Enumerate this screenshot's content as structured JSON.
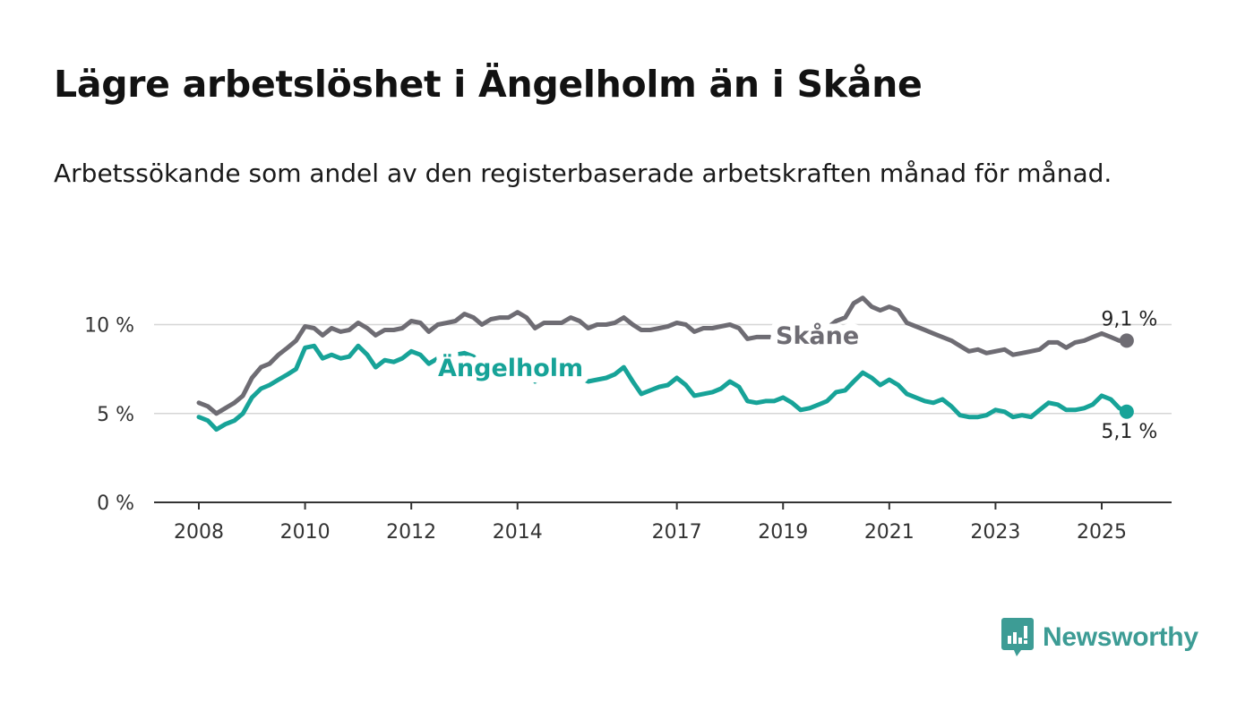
{
  "title": "Lägre arbetslöshet i Ängelholm än i Skåne",
  "subtitle": "Arbetssökande som andel av den registerbaserade arbetskraften månad för månad.",
  "brand": {
    "name": "Newsworthy",
    "color": "#3d9c95",
    "icon": "bar-chart-icon"
  },
  "chart_data": {
    "type": "line",
    "x_unit": "year",
    "xlim": [
      2007.75,
      2026.3
    ],
    "ylim": [
      0,
      12
    ],
    "grid": true,
    "x_ticks": [
      {
        "value": 2008,
        "label": "2008"
      },
      {
        "value": 2010,
        "label": "2010"
      },
      {
        "value": 2012,
        "label": "2012"
      },
      {
        "value": 2014,
        "label": "2014"
      },
      {
        "value": 2017,
        "label": "2017"
      },
      {
        "value": 2019,
        "label": "2019"
      },
      {
        "value": 2021,
        "label": "2021"
      },
      {
        "value": 2023,
        "label": "2023"
      },
      {
        "value": 2025,
        "label": "2025"
      }
    ],
    "y_ticks": [
      {
        "value": 0,
        "label": "0 %"
      },
      {
        "value": 5,
        "label": "5 %"
      },
      {
        "value": 10,
        "label": "10 %"
      }
    ],
    "series": [
      {
        "name": "Skåne",
        "color": "#6e6c73",
        "end_label": "9,1 %",
        "points": [
          [
            2008.0,
            5.6
          ],
          [
            2008.17,
            5.4
          ],
          [
            2008.33,
            5.0
          ],
          [
            2008.5,
            5.3
          ],
          [
            2008.67,
            5.6
          ],
          [
            2008.83,
            6.0
          ],
          [
            2009.0,
            7.0
          ],
          [
            2009.17,
            7.6
          ],
          [
            2009.33,
            7.8
          ],
          [
            2009.5,
            8.3
          ],
          [
            2009.67,
            8.7
          ],
          [
            2009.83,
            9.1
          ],
          [
            2010.0,
            9.9
          ],
          [
            2010.17,
            9.8
          ],
          [
            2010.33,
            9.4
          ],
          [
            2010.5,
            9.8
          ],
          [
            2010.67,
            9.6
          ],
          [
            2010.83,
            9.7
          ],
          [
            2011.0,
            10.1
          ],
          [
            2011.17,
            9.8
          ],
          [
            2011.33,
            9.4
          ],
          [
            2011.5,
            9.7
          ],
          [
            2011.67,
            9.7
          ],
          [
            2011.83,
            9.8
          ],
          [
            2012.0,
            10.2
          ],
          [
            2012.17,
            10.1
          ],
          [
            2012.33,
            9.6
          ],
          [
            2012.5,
            10.0
          ],
          [
            2012.67,
            10.1
          ],
          [
            2012.83,
            10.2
          ],
          [
            2013.0,
            10.6
          ],
          [
            2013.17,
            10.4
          ],
          [
            2013.33,
            10.0
          ],
          [
            2013.5,
            10.3
          ],
          [
            2013.67,
            10.4
          ],
          [
            2013.83,
            10.4
          ],
          [
            2014.0,
            10.7
          ],
          [
            2014.17,
            10.4
          ],
          [
            2014.33,
            9.8
          ],
          [
            2014.5,
            10.1
          ],
          [
            2014.67,
            10.1
          ],
          [
            2014.83,
            10.1
          ],
          [
            2015.0,
            10.4
          ],
          [
            2015.17,
            10.2
          ],
          [
            2015.33,
            9.8
          ],
          [
            2015.5,
            10.0
          ],
          [
            2015.67,
            10.0
          ],
          [
            2015.83,
            10.1
          ],
          [
            2016.0,
            10.4
          ],
          [
            2016.17,
            10.0
          ],
          [
            2016.33,
            9.7
          ],
          [
            2016.5,
            9.7
          ],
          [
            2016.67,
            9.8
          ],
          [
            2016.83,
            9.9
          ],
          [
            2017.0,
            10.1
          ],
          [
            2017.17,
            10.0
          ],
          [
            2017.33,
            9.6
          ],
          [
            2017.5,
            9.8
          ],
          [
            2017.67,
            9.8
          ],
          [
            2017.83,
            9.9
          ],
          [
            2018.0,
            10.0
          ],
          [
            2018.17,
            9.8
          ],
          [
            2018.33,
            9.2
          ],
          [
            2018.5,
            9.3
          ],
          [
            2018.67,
            9.3
          ],
          [
            2018.83,
            9.3
          ],
          [
            2019.0,
            9.6
          ],
          [
            2019.17,
            9.6
          ],
          [
            2019.33,
            9.4
          ],
          [
            2019.5,
            9.6
          ],
          [
            2019.67,
            9.6
          ],
          [
            2019.83,
            9.8
          ],
          [
            2020.0,
            10.2
          ],
          [
            2020.17,
            10.4
          ],
          [
            2020.33,
            11.2
          ],
          [
            2020.5,
            11.5
          ],
          [
            2020.67,
            11.0
          ],
          [
            2020.83,
            10.8
          ],
          [
            2021.0,
            11.0
          ],
          [
            2021.17,
            10.8
          ],
          [
            2021.33,
            10.1
          ],
          [
            2021.5,
            9.9
          ],
          [
            2021.67,
            9.7
          ],
          [
            2021.83,
            9.5
          ],
          [
            2022.0,
            9.3
          ],
          [
            2022.17,
            9.1
          ],
          [
            2022.33,
            8.8
          ],
          [
            2022.5,
            8.5
          ],
          [
            2022.67,
            8.6
          ],
          [
            2022.83,
            8.4
          ],
          [
            2023.0,
            8.5
          ],
          [
            2023.17,
            8.6
          ],
          [
            2023.33,
            8.3
          ],
          [
            2023.5,
            8.4
          ],
          [
            2023.67,
            8.5
          ],
          [
            2023.83,
            8.6
          ],
          [
            2024.0,
            9.0
          ],
          [
            2024.17,
            9.0
          ],
          [
            2024.33,
            8.7
          ],
          [
            2024.5,
            9.0
          ],
          [
            2024.67,
            9.1
          ],
          [
            2024.83,
            9.3
          ],
          [
            2025.0,
            9.5
          ],
          [
            2025.17,
            9.3
          ],
          [
            2025.33,
            9.1
          ],
          [
            2025.47,
            9.1
          ]
        ]
      },
      {
        "name": "Ängelholm",
        "color": "#17a398",
        "end_label": "5,1 %",
        "points": [
          [
            2008.0,
            4.8
          ],
          [
            2008.17,
            4.6
          ],
          [
            2008.33,
            4.1
          ],
          [
            2008.5,
            4.4
          ],
          [
            2008.67,
            4.6
          ],
          [
            2008.83,
            5.0
          ],
          [
            2009.0,
            5.9
          ],
          [
            2009.17,
            6.4
          ],
          [
            2009.33,
            6.6
          ],
          [
            2009.5,
            6.9
          ],
          [
            2009.67,
            7.2
          ],
          [
            2009.83,
            7.5
          ],
          [
            2010.0,
            8.7
          ],
          [
            2010.17,
            8.8
          ],
          [
            2010.33,
            8.1
          ],
          [
            2010.5,
            8.3
          ],
          [
            2010.67,
            8.1
          ],
          [
            2010.83,
            8.2
          ],
          [
            2011.0,
            8.8
          ],
          [
            2011.17,
            8.3
          ],
          [
            2011.33,
            7.6
          ],
          [
            2011.5,
            8.0
          ],
          [
            2011.67,
            7.9
          ],
          [
            2011.83,
            8.1
          ],
          [
            2012.0,
            8.5
          ],
          [
            2012.17,
            8.3
          ],
          [
            2012.33,
            7.8
          ],
          [
            2012.5,
            8.1
          ],
          [
            2012.67,
            8.2
          ],
          [
            2012.83,
            8.3
          ],
          [
            2013.0,
            8.4
          ],
          [
            2013.17,
            8.2
          ],
          [
            2013.33,
            7.6
          ],
          [
            2013.5,
            7.8
          ],
          [
            2013.67,
            7.7
          ],
          [
            2013.83,
            7.6
          ],
          [
            2014.0,
            7.6
          ],
          [
            2014.17,
            7.3
          ],
          [
            2014.33,
            6.8
          ],
          [
            2014.5,
            7.0
          ],
          [
            2014.67,
            6.9
          ],
          [
            2014.83,
            7.0
          ],
          [
            2015.0,
            7.1
          ],
          [
            2015.17,
            7.0
          ],
          [
            2015.33,
            6.8
          ],
          [
            2015.5,
            6.9
          ],
          [
            2015.67,
            7.0
          ],
          [
            2015.83,
            7.2
          ],
          [
            2016.0,
            7.6
          ],
          [
            2016.17,
            6.8
          ],
          [
            2016.33,
            6.1
          ],
          [
            2016.5,
            6.3
          ],
          [
            2016.67,
            6.5
          ],
          [
            2016.83,
            6.6
          ],
          [
            2017.0,
            7.0
          ],
          [
            2017.17,
            6.6
          ],
          [
            2017.33,
            6.0
          ],
          [
            2017.5,
            6.1
          ],
          [
            2017.67,
            6.2
          ],
          [
            2017.83,
            6.4
          ],
          [
            2018.0,
            6.8
          ],
          [
            2018.17,
            6.5
          ],
          [
            2018.33,
            5.7
          ],
          [
            2018.5,
            5.6
          ],
          [
            2018.67,
            5.7
          ],
          [
            2018.83,
            5.7
          ],
          [
            2019.0,
            5.9
          ],
          [
            2019.17,
            5.6
          ],
          [
            2019.33,
            5.2
          ],
          [
            2019.5,
            5.3
          ],
          [
            2019.67,
            5.5
          ],
          [
            2019.83,
            5.7
          ],
          [
            2020.0,
            6.2
          ],
          [
            2020.17,
            6.3
          ],
          [
            2020.33,
            6.8
          ],
          [
            2020.5,
            7.3
          ],
          [
            2020.67,
            7.0
          ],
          [
            2020.83,
            6.6
          ],
          [
            2021.0,
            6.9
          ],
          [
            2021.17,
            6.6
          ],
          [
            2021.33,
            6.1
          ],
          [
            2021.5,
            5.9
          ],
          [
            2021.67,
            5.7
          ],
          [
            2021.83,
            5.6
          ],
          [
            2022.0,
            5.8
          ],
          [
            2022.17,
            5.4
          ],
          [
            2022.33,
            4.9
          ],
          [
            2022.5,
            4.8
          ],
          [
            2022.67,
            4.8
          ],
          [
            2022.83,
            4.9
          ],
          [
            2023.0,
            5.2
          ],
          [
            2023.17,
            5.1
          ],
          [
            2023.33,
            4.8
          ],
          [
            2023.5,
            4.9
          ],
          [
            2023.67,
            4.8
          ],
          [
            2023.83,
            5.2
          ],
          [
            2024.0,
            5.6
          ],
          [
            2024.17,
            5.5
          ],
          [
            2024.33,
            5.2
          ],
          [
            2024.5,
            5.2
          ],
          [
            2024.67,
            5.3
          ],
          [
            2024.83,
            5.5
          ],
          [
            2025.0,
            6.0
          ],
          [
            2025.17,
            5.8
          ],
          [
            2025.33,
            5.3
          ],
          [
            2025.47,
            5.1
          ]
        ]
      }
    ]
  }
}
